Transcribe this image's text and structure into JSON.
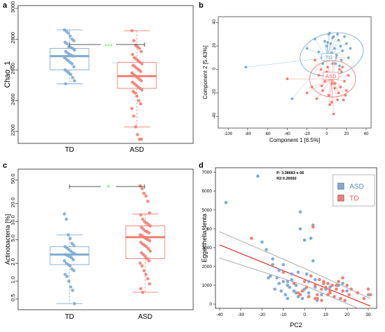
{
  "colors": {
    "td": "#7eabd1",
    "asd": "#ef7f72",
    "sig": "#66ee66",
    "fit": "#e0302a",
    "ci": "#aaaaaa"
  },
  "chart_data": [
    {
      "panel": "a",
      "type": "box",
      "ylabel": "Chao_1",
      "categories": [
        "TD",
        "ASD"
      ],
      "ylim": [
        2150,
        3000
      ],
      "yticks": [
        "3000",
        "2800",
        "2600",
        "2400",
        "2200"
      ],
      "ytick_values": [
        3000,
        2800,
        2600,
        2400,
        2200
      ],
      "significance": "***",
      "boxes": [
        {
          "name": "TD",
          "min": 2510,
          "q1": 2600,
          "median": 2690,
          "q3": 2740,
          "max": 2860
        },
        {
          "name": "ASD",
          "min": 2230,
          "q1": 2480,
          "median": 2560,
          "q3": 2650,
          "max": 2855
        }
      ],
      "points": [
        [
          2860,
          2850,
          2840,
          2820,
          2800,
          2790,
          2780,
          2770,
          2750,
          2745,
          2740,
          2730,
          2720,
          2710,
          2700,
          2695,
          2690,
          2680,
          2670,
          2660,
          2650,
          2640,
          2620,
          2600,
          2590,
          2580,
          2570,
          2550,
          2530,
          2510
        ],
        [
          2855,
          2790,
          2760,
          2750,
          2740,
          2720,
          2700,
          2680,
          2670,
          2660,
          2650,
          2640,
          2630,
          2620,
          2610,
          2600,
          2590,
          2580,
          2570,
          2560,
          2550,
          2540,
          2530,
          2520,
          2510,
          2500,
          2490,
          2480,
          2470,
          2460,
          2450,
          2430,
          2400,
          2380,
          2350,
          2300,
          2230,
          2180,
          2150,
          2100
        ]
      ]
    },
    {
      "panel": "b",
      "type": "scatter",
      "xlabel": "Component 1 [6.5%]",
      "ylabel": "Component 2 [5.43%]",
      "xlim": [
        -110,
        45
      ],
      "ylim": [
        -50,
        45
      ],
      "xticks": [
        "-100",
        "-80",
        "-60",
        "-40",
        "-20",
        "0",
        "20",
        "40"
      ],
      "xtick_values": [
        -100,
        -80,
        -60,
        -40,
        -20,
        0,
        20,
        40
      ],
      "yticks": [
        "40",
        "20",
        "0",
        "-20",
        "-40"
      ],
      "ytick_values": [
        40,
        20,
        0,
        -20,
        -40
      ],
      "group_labels": [
        "TD",
        "ASD"
      ],
      "series": [
        {
          "name": "TD",
          "x": [
            -82,
            -35,
            -20,
            -12,
            -8,
            -5,
            -2,
            0,
            2,
            4,
            5,
            6,
            8,
            10,
            12,
            14,
            15,
            16,
            18,
            20,
            22,
            24,
            3,
            -4,
            9,
            13,
            -1,
            7,
            11,
            1
          ],
          "y": [
            2,
            -25,
            18,
            26,
            15,
            10,
            24,
            20,
            30,
            22,
            14,
            27,
            18,
            12,
            25,
            20,
            8,
            16,
            28,
            22,
            10,
            18,
            31,
            5,
            5,
            3,
            12,
            28,
            30,
            23
          ]
        },
        {
          "name": "TD centroid",
          "x": [
            0
          ],
          "y": [
            10
          ]
        },
        {
          "name": "ASD",
          "x": [
            -40,
            -20,
            -15,
            -10,
            -8,
            -6,
            -4,
            -2,
            0,
            2,
            4,
            5,
            6,
            8,
            10,
            12,
            14,
            16,
            18,
            20,
            22,
            -12,
            3,
            7,
            11,
            15,
            -3,
            1,
            9,
            13,
            17,
            5,
            19,
            -5,
            0,
            8
          ],
          "y": [
            -8,
            -20,
            -15,
            -25,
            -5,
            0,
            -18,
            -10,
            -2,
            -22,
            -8,
            -28,
            5,
            -12,
            -5,
            -20,
            -15,
            2,
            -10,
            -18,
            -5,
            8,
            -30,
            -38,
            -26,
            -2,
            12,
            2,
            10,
            0,
            -26,
            -12,
            -22,
            -14,
            -6,
            -16
          ]
        },
        {
          "name": "ASD centroid",
          "x": [
            5
          ],
          "y": [
            -8
          ]
        }
      ]
    },
    {
      "panel": "c",
      "type": "box",
      "ylabel": "Actinobacteria [%]",
      "categories": [
        "TD",
        "ASD"
      ],
      "yscale": "log",
      "ylim": [
        0.4,
        60
      ],
      "yticks": [
        "50.0",
        "20.0",
        "10.0",
        "5.0",
        "2.0",
        "1.0",
        "0.5"
      ],
      "ytick_values": [
        50,
        20,
        10,
        5,
        2,
        1,
        0.5
      ],
      "significance": "*",
      "boxes": [
        {
          "name": "TD",
          "min": 0.42,
          "q1": 1.9,
          "median": 2.8,
          "q3": 3.8,
          "max": 6.0
        },
        {
          "name": "ASD",
          "min": 0.65,
          "q1": 2.4,
          "median": 5.5,
          "q3": 8.5,
          "max": 13.5
        }
      ],
      "points": [
        [
          13.5,
          11,
          6,
          5.2,
          4.3,
          4.0,
          3.8,
          3.6,
          3.4,
          3.2,
          3.0,
          2.9,
          2.8,
          2.7,
          2.6,
          2.5,
          2.3,
          2.2,
          2.0,
          1.9,
          1.8,
          1.6,
          1.5,
          1.3,
          1.2,
          1.0,
          0.8,
          0.7,
          0.42
        ],
        [
          40,
          36,
          30,
          27,
          22,
          14,
          13,
          11,
          10,
          9.5,
          9,
          8.5,
          8,
          7.5,
          7,
          6.8,
          6.5,
          6,
          5.8,
          5.5,
          5.2,
          5,
          4.8,
          4.5,
          4.2,
          4,
          3.8,
          3.5,
          3.2,
          3,
          2.8,
          2.6,
          2.4,
          2.2,
          2,
          1.8,
          1.5,
          1.3,
          1.1,
          0.9,
          0.75,
          0.65
        ]
      ]
    },
    {
      "panel": "d",
      "type": "scatter",
      "xlabel": "PC2",
      "ylabel": "Eggerthella_lenta",
      "xlim": [
        -40,
        32
      ],
      "ylim": [
        0,
        7100
      ],
      "xticks": [
        "-40",
        "-30",
        "-20",
        "-10",
        "0",
        "10",
        "20",
        "30"
      ],
      "xtick_values": [
        -40,
        -30,
        -20,
        -10,
        0,
        10,
        20,
        30
      ],
      "yticks": [
        "0",
        "1000",
        "2000",
        "3000",
        "4000",
        "5000",
        "6000",
        "7000"
      ],
      "ytick_values": [
        0,
        1000,
        2000,
        3000,
        4000,
        5000,
        6000,
        7000
      ],
      "annotations": [
        "P: 3.38683 e-06",
        "R2:0.26692"
      ],
      "legend": [
        "ASD",
        "TD"
      ],
      "legend_position": "top-right",
      "fit_line": {
        "x": [
          -40,
          31
        ],
        "y": [
          3150,
          -100
        ]
      },
      "ci_upper": {
        "x": [
          -40,
          0,
          31
        ],
        "y": [
          3850,
          1900,
          300
        ]
      },
      "ci_lower": {
        "x": [
          -40,
          0,
          31
        ],
        "y": [
          2450,
          1000,
          -500
        ]
      },
      "series": [
        {
          "name": "ASD",
          "x": [
            -37,
            -22,
            -20,
            -18,
            -16,
            -15,
            -14,
            -13,
            -12,
            -11,
            -10,
            -9,
            -8,
            -7,
            -6,
            -5,
            -4,
            -3,
            -2,
            -1,
            0,
            1,
            2,
            3,
            4,
            5,
            6,
            -17,
            -12,
            -8,
            -4,
            0,
            4,
            8,
            12,
            16,
            18,
            20,
            28,
            30,
            -10,
            -6,
            -2,
            2,
            -15,
            -1,
            -3,
            5,
            10,
            -8
          ],
          "y": [
            5400,
            6800,
            3300,
            2900,
            1500,
            2400,
            800,
            1400,
            1100,
            700,
            1200,
            500,
            300,
            900,
            1300,
            700,
            1000,
            400,
            4900,
            300,
            800,
            1600,
            600,
            3500,
            4200,
            1300,
            200,
            1400,
            1800,
            1000,
            600,
            3400,
            2300,
            500,
            900,
            1000,
            1100,
            700,
            300,
            500,
            2100,
            1600,
            4000,
            1200,
            2100,
            300,
            1700,
            900,
            800,
            1200
          ]
        },
        {
          "name": "TD",
          "x": [
            -25,
            -10,
            -5,
            -2,
            0,
            2,
            4,
            5,
            6,
            7,
            8,
            9,
            10,
            11,
            12,
            13,
            14,
            15,
            16,
            17,
            18,
            19,
            20,
            21,
            22,
            25,
            28,
            30,
            31,
            3,
            1,
            6,
            9,
            12,
            15,
            18,
            -3,
            -1,
            2,
            5,
            8,
            11
          ],
          "y": [
            3500,
            1700,
            1100,
            500,
            1200,
            400,
            4100,
            1000,
            300,
            1300,
            800,
            1100,
            900,
            500,
            600,
            1000,
            400,
            800,
            1200,
            300,
            700,
            200,
            1000,
            500,
            800,
            600,
            300,
            800,
            500,
            1500,
            900,
            500,
            1200,
            700,
            1000,
            1400,
            600,
            700,
            400,
            300,
            200,
            1100
          ]
        }
      ]
    }
  ]
}
